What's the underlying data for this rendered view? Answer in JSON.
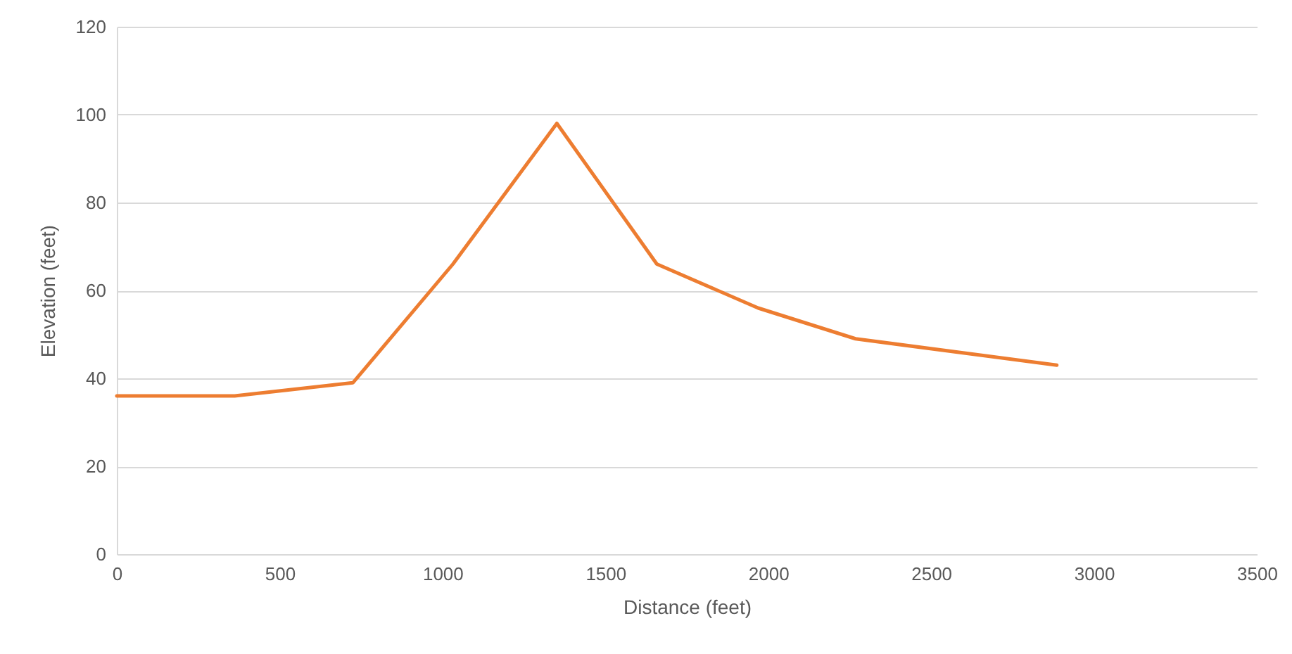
{
  "chart_data": {
    "type": "line",
    "xlabel": "Distance (feet)",
    "ylabel": "Elevation (feet)",
    "x": [
      0,
      362,
      725,
      1032,
      1351,
      1658,
      1969,
      2268,
      2886
    ],
    "series": [
      {
        "color": "#ed7d31",
        "values": [
          36,
          36,
          39,
          66,
          98,
          66,
          56,
          49,
          43
        ]
      }
    ],
    "xlim": [
      0,
      3500
    ],
    "xticks": [
      0,
      500,
      1000,
      1500,
      2000,
      2500,
      3000,
      3500
    ],
    "ylim": [
      0,
      120
    ],
    "yticks": [
      0,
      20,
      40,
      60,
      80,
      100,
      120
    ],
    "grid": "y",
    "marker": "none",
    "line_style": "solid"
  }
}
